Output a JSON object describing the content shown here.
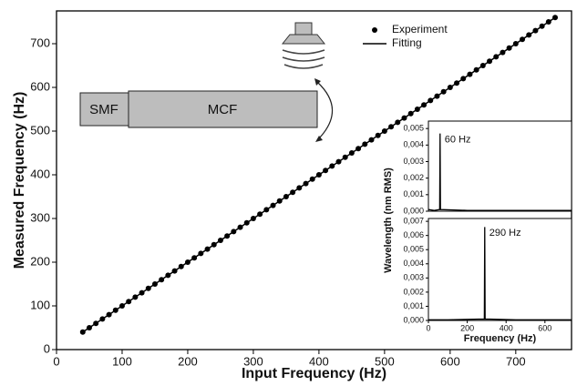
{
  "chart_data": [
    {
      "type": "scatter",
      "xlabel": "Input Frequency (Hz)",
      "ylabel": "Measured Frequency (Hz)",
      "xlim": [
        0,
        785
      ],
      "ylim": [
        0,
        775
      ],
      "xticks": [
        0,
        100,
        200,
        300,
        400,
        500,
        600,
        700
      ],
      "yticks": [
        0,
        100,
        200,
        300,
        400,
        500,
        600,
        700
      ],
      "legend": "upper right",
      "series": [
        {
          "name": "Experiment",
          "type": "scatter",
          "color": "#000000",
          "x": [
            40,
            50,
            60,
            70,
            80,
            90,
            100,
            110,
            120,
            130,
            140,
            150,
            160,
            170,
            180,
            190,
            200,
            210,
            220,
            230,
            240,
            250,
            260,
            270,
            280,
            290,
            300,
            310,
            320,
            330,
            340,
            350,
            360,
            370,
            380,
            390,
            400,
            410,
            420,
            430,
            440,
            450,
            460,
            470,
            480,
            490,
            500,
            510,
            520,
            530,
            540,
            550,
            560,
            570,
            580,
            590,
            600,
            610,
            620,
            630,
            640,
            650,
            660,
            670,
            680,
            690,
            700,
            710,
            720,
            730,
            740,
            750,
            760
          ],
          "values": [
            40,
            50,
            60,
            70,
            80,
            90,
            100,
            110,
            120,
            130,
            140,
            150,
            160,
            170,
            180,
            190,
            200,
            210,
            220,
            230,
            240,
            250,
            260,
            270,
            280,
            290,
            300,
            310,
            320,
            330,
            340,
            350,
            360,
            370,
            380,
            390,
            400,
            410,
            420,
            430,
            440,
            450,
            460,
            470,
            480,
            490,
            500,
            510,
            520,
            530,
            540,
            550,
            560,
            570,
            580,
            590,
            600,
            610,
            620,
            630,
            640,
            650,
            660,
            670,
            680,
            690,
            700,
            710,
            720,
            730,
            740,
            750,
            760
          ]
        },
        {
          "name": "Fitting",
          "type": "line",
          "color": "#000000",
          "x": [
            40,
            760
          ],
          "values": [
            40,
            760
          ]
        }
      ]
    },
    {
      "type": "line",
      "annotation": "60 Hz",
      "xlim": [
        0,
        737
      ],
      "ylim": [
        0,
        0.00545
      ],
      "yticks": [
        {
          "value": 0,
          "label": "0,000"
        },
        {
          "value": 0.001,
          "label": "0,001"
        },
        {
          "value": 0.002,
          "label": "0,002"
        },
        {
          "value": 0.003,
          "label": "0,003"
        },
        {
          "value": 0.004,
          "label": "0,004"
        },
        {
          "value": 0.005,
          "label": "0,005"
        }
      ],
      "series": [
        {
          "color": "#000000",
          "x": [
            0,
            30,
            58,
            60,
            62,
            200,
            400,
            600,
            737
          ],
          "values": [
            0.0001,
            5e-05,
            0.0001,
            0.0047,
            0.0001,
            5e-05,
            5e-05,
            5e-05,
            5e-05
          ]
        }
      ]
    },
    {
      "type": "line",
      "annotation": "290 Hz",
      "xlabel": "Frequency (Hz)",
      "ylabel": "Wavelength (nm RMS)",
      "xlim": [
        0,
        737
      ],
      "ylim": [
        0,
        0.0072
      ],
      "xticks": [
        0,
        200,
        400,
        600
      ],
      "yticks": [
        {
          "value": 0,
          "label": "0,000"
        },
        {
          "value": 0.001,
          "label": "0,001"
        },
        {
          "value": 0.002,
          "label": "0,002"
        },
        {
          "value": 0.003,
          "label": "0,003"
        },
        {
          "value": 0.004,
          "label": "0,004"
        },
        {
          "value": 0.005,
          "label": "0,005"
        },
        {
          "value": 0.006,
          "label": "0,006"
        },
        {
          "value": 0.007,
          "label": "0,007"
        }
      ],
      "series": [
        {
          "color": "#000000",
          "x": [
            0,
            100,
            288,
            290,
            292,
            450,
            600,
            737
          ],
          "values": [
            5e-05,
            5e-05,
            0.0001,
            0.0066,
            0.0001,
            5e-05,
            5e-05,
            5e-05
          ]
        }
      ]
    }
  ],
  "diagram": {
    "labels": [
      "SMF",
      "MCF"
    ]
  }
}
